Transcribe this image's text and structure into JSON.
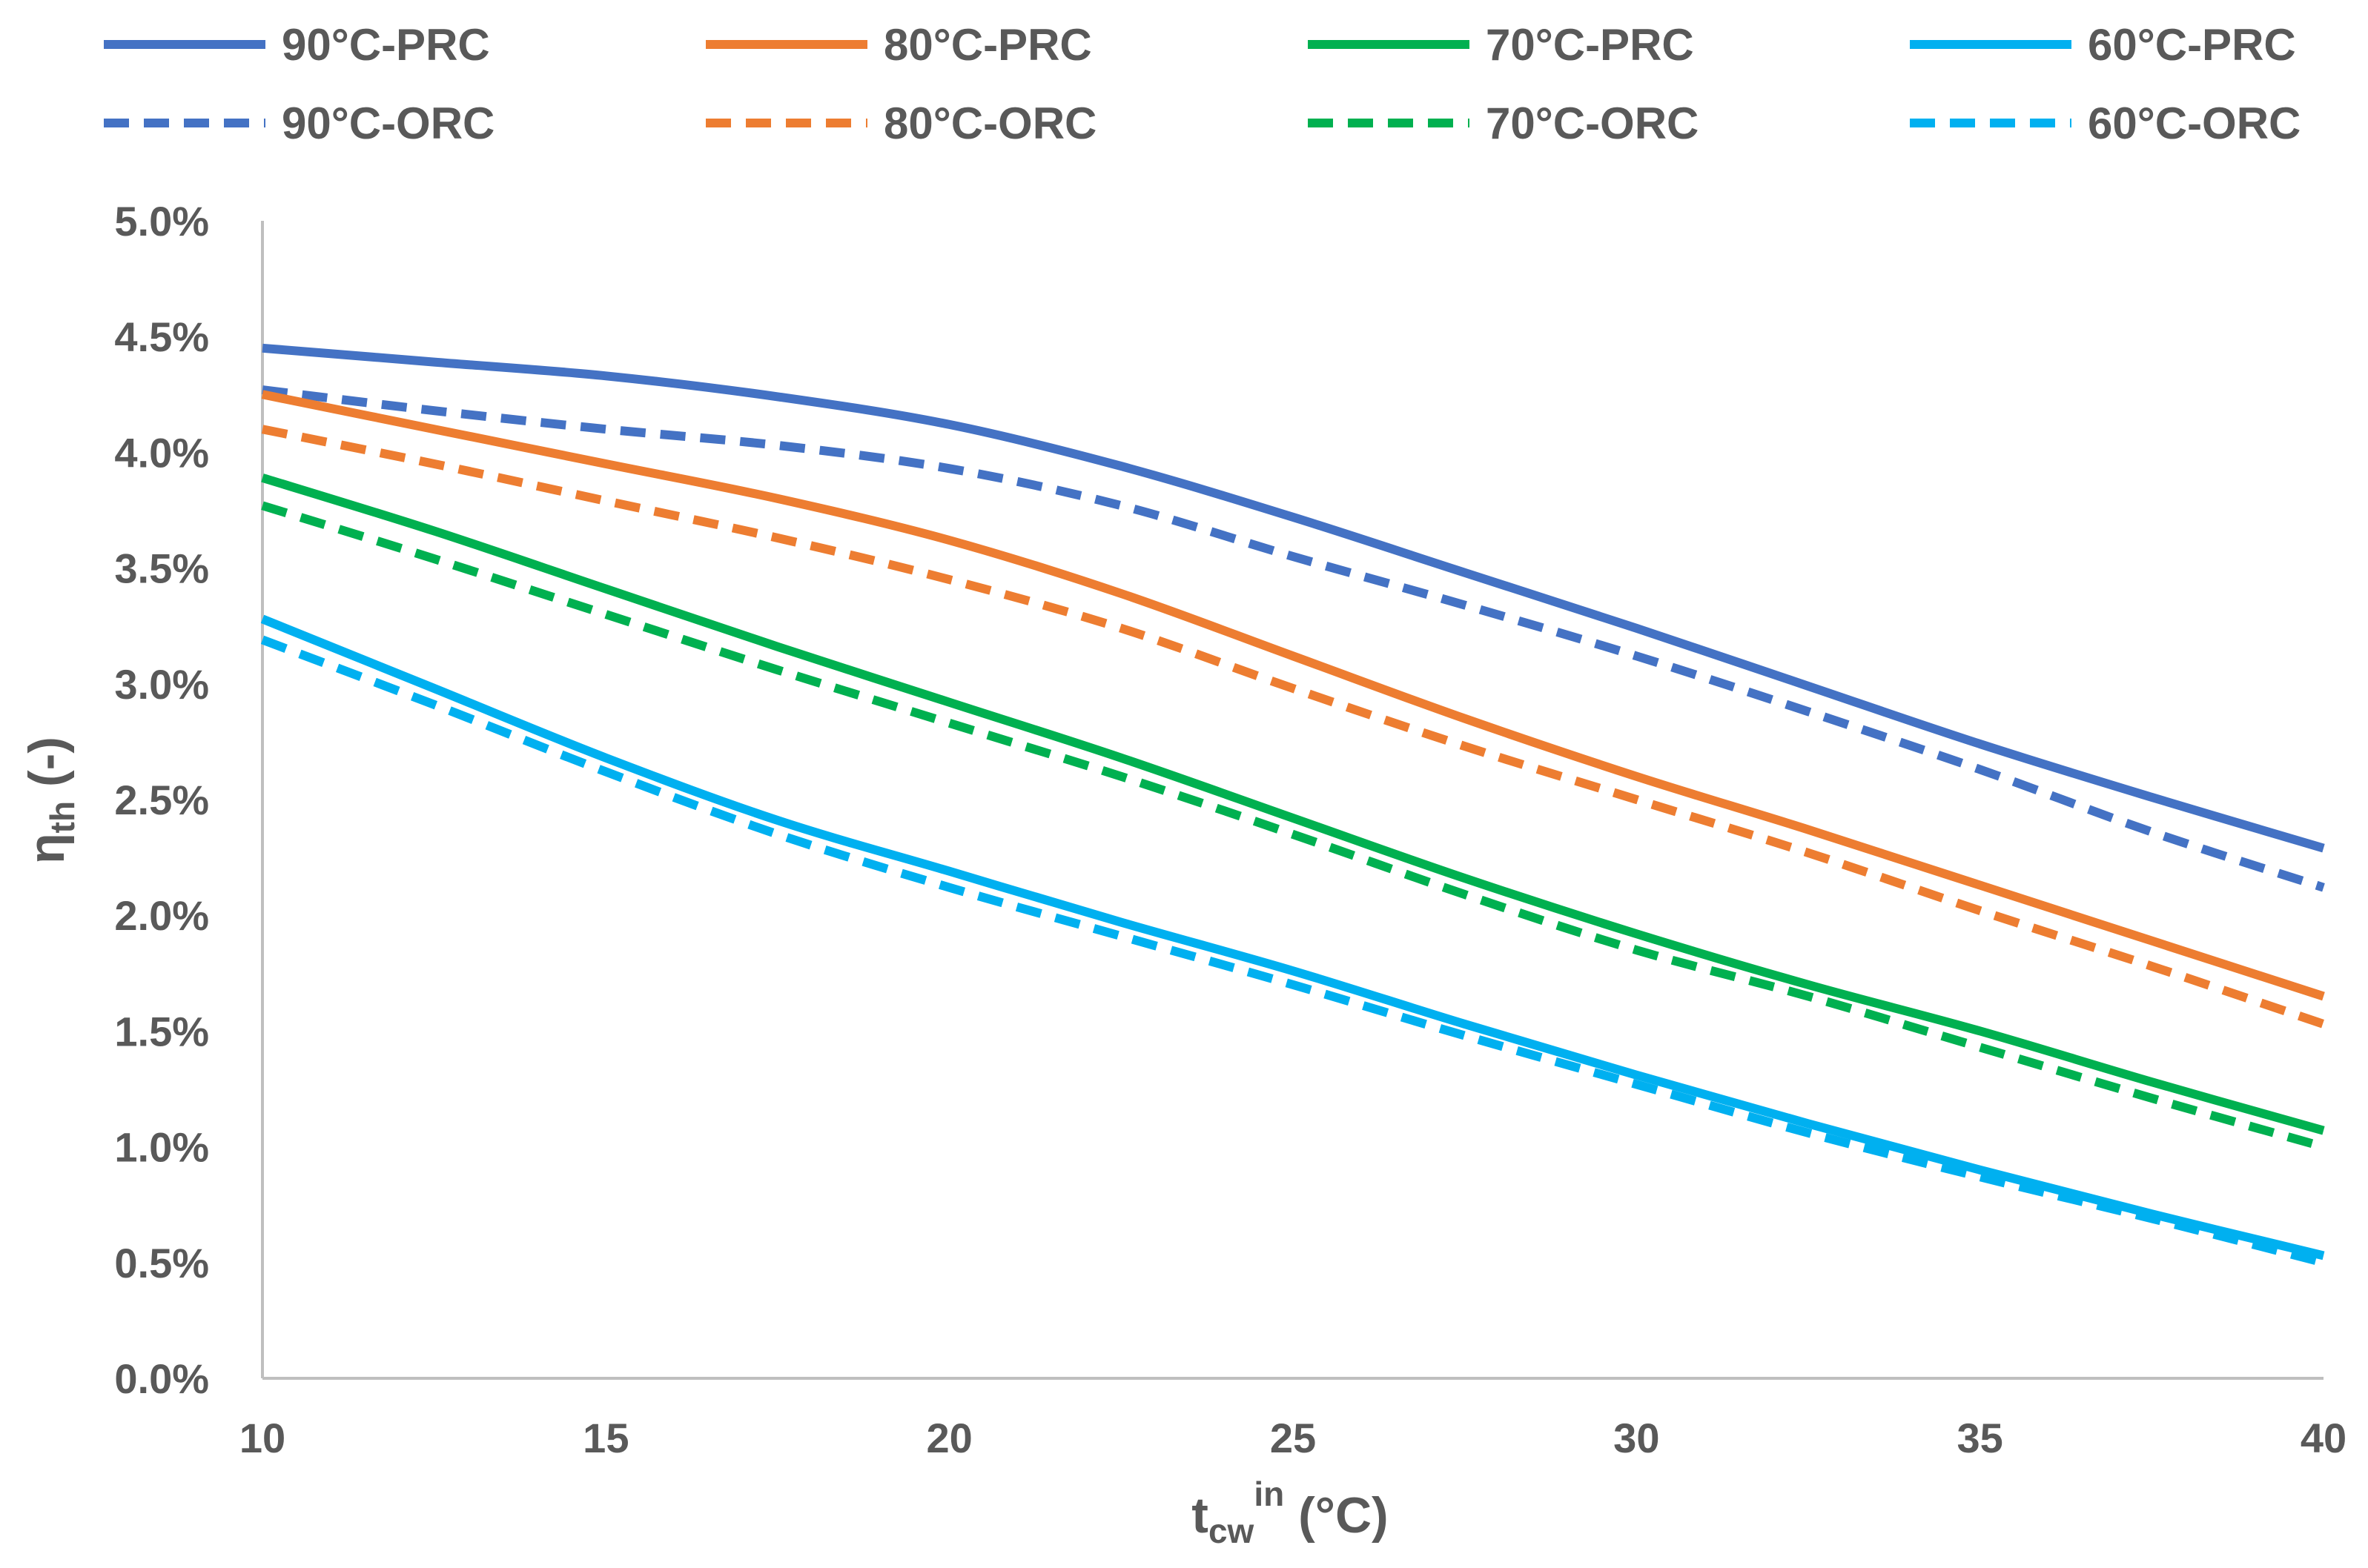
{
  "chart_data": {
    "type": "line",
    "title": "",
    "xlabel": {
      "main": "t",
      "sub": "cw",
      "sup": "in",
      "suffix": " (°C)"
    },
    "ylabel": {
      "main": "η",
      "sub": "th",
      "suffix": " (-)"
    },
    "xlim": [
      10,
      40
    ],
    "ylim": [
      0.0,
      5.0
    ],
    "x_ticks": [
      10,
      15,
      20,
      25,
      30,
      35,
      40
    ],
    "x_tick_labels": [
      "10",
      "15",
      "20",
      "25",
      "30",
      "35",
      "40"
    ],
    "y_ticks": [
      0.0,
      0.5,
      1.0,
      1.5,
      2.0,
      2.5,
      3.0,
      3.5,
      4.0,
      4.5,
      5.0
    ],
    "y_tick_labels": [
      "0.0%",
      "0.5%",
      "1.0%",
      "1.5%",
      "2.0%",
      "2.5%",
      "3.0%",
      "3.5%",
      "4.0%",
      "4.5%",
      "5.0%"
    ],
    "grid": false,
    "legend_position": "top",
    "x": [
      10,
      12.5,
      15,
      17.5,
      20,
      22.5,
      25,
      27.5,
      30,
      32.5,
      35,
      37.5,
      40
    ],
    "series": [
      {
        "name": "90°C-PRC",
        "color": "#4472C4",
        "dash": "solid",
        "values": [
          4.45,
          4.39,
          4.33,
          4.24,
          4.12,
          3.94,
          3.72,
          3.48,
          3.24,
          2.99,
          2.74,
          2.51,
          2.29
        ]
      },
      {
        "name": "80°C-PRC",
        "color": "#ED7D31",
        "dash": "solid",
        "values": [
          4.25,
          4.1,
          3.95,
          3.8,
          3.62,
          3.39,
          3.12,
          2.85,
          2.6,
          2.37,
          2.13,
          1.89,
          1.65
        ]
      },
      {
        "name": "70°C-PRC",
        "color": "#00B050",
        "dash": "solid",
        "values": [
          3.89,
          3.66,
          3.41,
          3.16,
          2.92,
          2.68,
          2.42,
          2.16,
          1.92,
          1.7,
          1.5,
          1.28,
          1.07
        ]
      },
      {
        "name": "60°C-PRC",
        "color": "#00B0F0",
        "dash": "solid",
        "values": [
          3.28,
          2.98,
          2.68,
          2.41,
          2.19,
          1.97,
          1.76,
          1.53,
          1.31,
          1.1,
          0.9,
          0.71,
          0.53
        ]
      },
      {
        "name": "90°C-ORC",
        "color": "#4472C4",
        "dash": "dashed",
        "values": [
          4.27,
          4.18,
          4.1,
          4.03,
          3.93,
          3.77,
          3.55,
          3.34,
          3.12,
          2.88,
          2.63,
          2.36,
          2.12
        ]
      },
      {
        "name": "80°C-ORC",
        "color": "#ED7D31",
        "dash": "dashed",
        "values": [
          4.1,
          3.95,
          3.79,
          3.63,
          3.45,
          3.24,
          2.98,
          2.73,
          2.5,
          2.27,
          2.02,
          1.78,
          1.53
        ]
      },
      {
        "name": "70°C-ORC",
        "color": "#00B050",
        "dash": "dashed",
        "values": [
          3.77,
          3.54,
          3.3,
          3.06,
          2.83,
          2.6,
          2.35,
          2.09,
          1.85,
          1.65,
          1.43,
          1.21,
          1.0
        ]
      },
      {
        "name": "60°C-ORC",
        "color": "#00B0F0",
        "dash": "dashed",
        "values": [
          3.19,
          2.91,
          2.62,
          2.35,
          2.12,
          1.91,
          1.7,
          1.48,
          1.27,
          1.06,
          0.87,
          0.69,
          0.5
        ]
      }
    ],
    "legend_order": [
      "90°C-PRC",
      "80°C-PRC",
      "70°C-PRC",
      "60°C-PRC",
      "90°C-ORC",
      "80°C-ORC",
      "70°C-ORC",
      "60°C-ORC"
    ]
  }
}
